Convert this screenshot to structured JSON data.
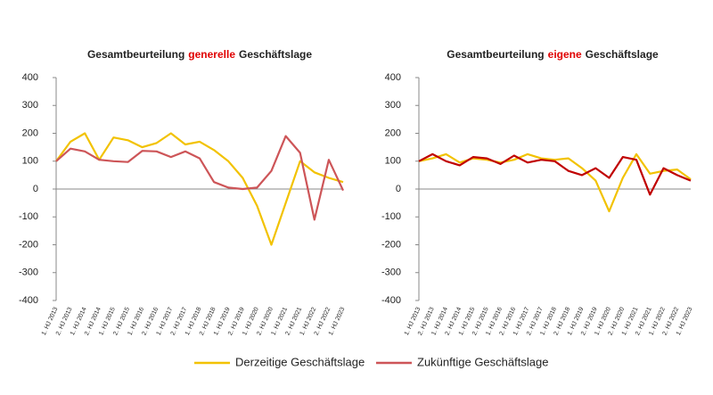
{
  "chart_data": [
    {
      "type": "line",
      "title": [
        "Gesamtbeurteilung",
        "generelle",
        "Geschäftslage"
      ],
      "categories": [
        "1. HJ 2013",
        "2. HJ 2013",
        "1. HJ 2014",
        "2. HJ 2014",
        "1. HJ 2015",
        "2. HJ 2015",
        "1. HJ 2016",
        "2. HJ 2016",
        "1. HJ 2017",
        "2. HJ 2017",
        "1. HJ 2018",
        "2. HJ 2018",
        "1. HJ 2019",
        "2. HJ 2019",
        "1. HJ 2020",
        "2. HJ 2020",
        "1. HJ 2021",
        "2. HJ 2021",
        "1. HJ 2022",
        "2. HJ 2022",
        "1. HJ 2023"
      ],
      "series": [
        {
          "name": "Derzeitige Geschäftslage",
          "color": "#f2c200",
          "values": [
            100,
            170,
            200,
            105,
            185,
            175,
            150,
            165,
            200,
            160,
            170,
            140,
            100,
            40,
            -60,
            -200,
            -50,
            100,
            60,
            40,
            25
          ]
        },
        {
          "name": "Zukünftige Geschäftslage",
          "color": "#cd5558",
          "values": [
            100,
            145,
            135,
            105,
            100,
            97,
            137,
            135,
            115,
            135,
            110,
            25,
            5,
            0,
            5,
            65,
            190,
            130,
            -110,
            105,
            -5
          ]
        }
      ],
      "ylim": [
        -400,
        400
      ],
      "yticks": [
        -400,
        -300,
        -200,
        -100,
        0,
        100,
        200,
        300,
        400
      ]
    },
    {
      "type": "line",
      "title": [
        "Gesamtbeurteilung",
        "eigene",
        "Geschäftslage"
      ],
      "categories": [
        "1. HJ 2013",
        "2. HJ 2013",
        "1. HJ 2014",
        "2. HJ 2014",
        "1. HJ 2015",
        "2. HJ 2015",
        "1. HJ 2016",
        "2. HJ 2016",
        "1. HJ 2017",
        "2. HJ 2017",
        "1. HJ 2018",
        "2. HJ 2018",
        "1. HJ 2019",
        "2. HJ 2019",
        "1. HJ 2020",
        "2. HJ 2020",
        "1. HJ 2021",
        "2. HJ 2021",
        "1. HJ 2022",
        "2. HJ 2022",
        "1. HJ 2023"
      ],
      "series": [
        {
          "name": "Derzeitige Geschäftslage",
          "color": "#f2c200",
          "values": [
            100,
            110,
            125,
            95,
            110,
            105,
            95,
            105,
            125,
            110,
            105,
            110,
            75,
            30,
            -80,
            40,
            125,
            55,
            65,
            70,
            35
          ]
        },
        {
          "name": "Zukünftige Geschäftslage",
          "color": "#c00000",
          "values": [
            100,
            125,
            100,
            85,
            115,
            110,
            90,
            120,
            95,
            105,
            100,
            65,
            50,
            75,
            40,
            115,
            105,
            -20,
            75,
            50,
            30
          ]
        }
      ],
      "ylim": [
        -400,
        400
      ],
      "yticks": [
        -400,
        -300,
        -200,
        -100,
        0,
        100,
        200,
        300,
        400
      ]
    }
  ]
}
